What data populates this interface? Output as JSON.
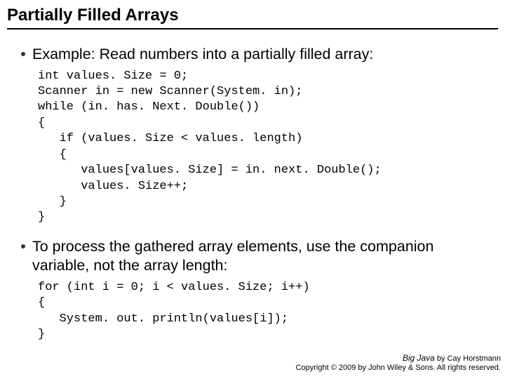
{
  "title": "Partially Filled Arrays",
  "bullets": {
    "b1": "Example: Read numbers into a partially filled array:",
    "b2_line1": "To process the gathered array elements, use the companion",
    "b2_line2": "variable, not the array length:"
  },
  "code": {
    "block1": "int values. Size = 0;\nScanner in = new Scanner(System. in);\nwhile (in. has. Next. Double())\n{\n   if (values. Size < values. length)\n   {\n      values[values. Size] = in. next. Double();\n      values. Size++;\n   }\n}",
    "block2": "for (int i = 0; i < values. Size; i++)\n{\n   System. out. println(values[i]);\n}"
  },
  "footer": {
    "line1_italic": "Big Java",
    "line1_rest": " by Cay Horstmann",
    "line2": "Copyright © 2009 by John Wiley & Sons.  All rights reserved."
  },
  "colors": {
    "text": "#000000",
    "background": "#ffffff",
    "bullet": "#333333",
    "underline": "#000000"
  },
  "fonts": {
    "title_family": "Trebuchet MS",
    "title_size_pt": 18,
    "body_family": "Arial",
    "body_size_pt": 16,
    "code_family": "Courier New",
    "code_size_pt": 13,
    "footer_size_pt": 8
  }
}
